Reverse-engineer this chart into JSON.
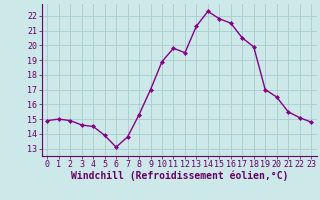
{
  "x": [
    0,
    1,
    2,
    3,
    4,
    5,
    6,
    7,
    8,
    9,
    10,
    11,
    12,
    13,
    14,
    15,
    16,
    17,
    18,
    19,
    20,
    21,
    22,
    23
  ],
  "y": [
    14.9,
    15.0,
    14.9,
    14.6,
    14.5,
    13.9,
    13.1,
    13.8,
    15.3,
    17.0,
    18.9,
    19.8,
    19.5,
    21.3,
    22.3,
    21.8,
    21.5,
    20.5,
    19.9,
    17.0,
    16.5,
    15.5,
    15.1,
    14.8
  ],
  "xlabel": "Windchill (Refroidissement éolien,°C)",
  "xlim": [
    -0.5,
    23.5
  ],
  "ylim": [
    12.5,
    22.8
  ],
  "yticks": [
    13,
    14,
    15,
    16,
    17,
    18,
    19,
    20,
    21,
    22
  ],
  "xticks": [
    0,
    1,
    2,
    3,
    4,
    5,
    6,
    7,
    8,
    9,
    10,
    11,
    12,
    13,
    14,
    15,
    16,
    17,
    18,
    19,
    20,
    21,
    22,
    23
  ],
  "line_color": "#880088",
  "marker": "D",
  "marker_size": 2.0,
  "bg_color": "#cce8e8",
  "grid_color": "#aacccc",
  "tick_label_fontsize": 6.0,
  "xlabel_fontsize": 7.0,
  "line_width": 1.0
}
